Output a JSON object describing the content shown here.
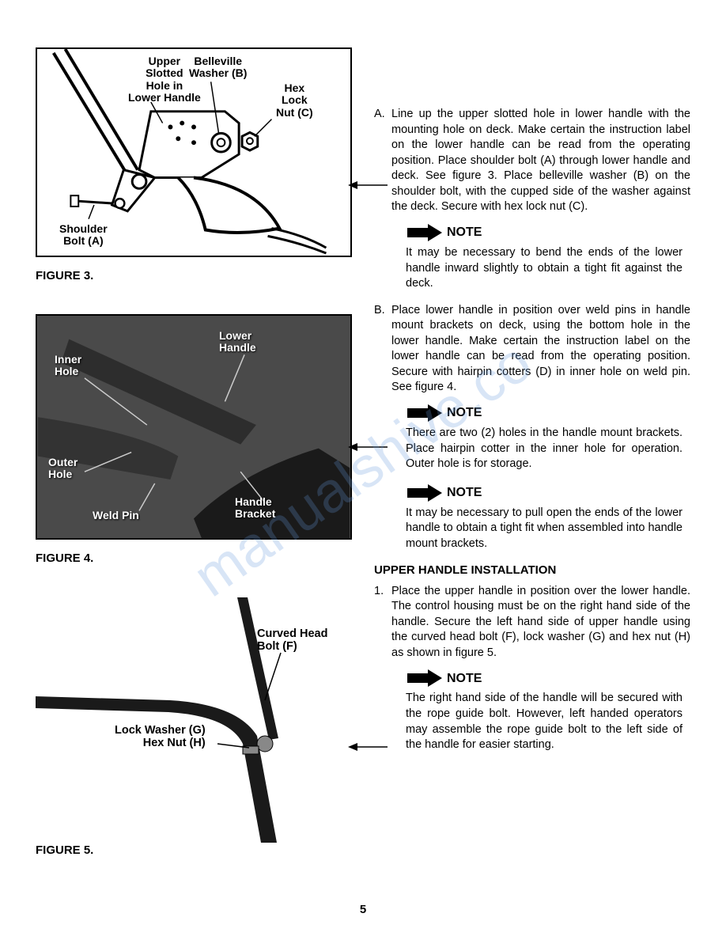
{
  "page_number": "5",
  "watermark": "manualshive.co",
  "figures": {
    "fig3": {
      "caption": "FIGURE 3.",
      "labels": {
        "upper_slotted": "Upper\nSlotted\nHole in\nLower Handle",
        "belleville": "Belleville\nWasher (B)",
        "hex_lock": "Hex\nLock\nNut (C)",
        "shoulder_bolt": "Shoulder\nBolt (A)"
      }
    },
    "fig4": {
      "caption": "FIGURE 4.",
      "labels": {
        "inner_hole": "Inner\nHole",
        "lower_handle": "Lower\nHandle",
        "outer_hole": "Outer\nHole",
        "weld_pin": "Weld Pin",
        "handle_bracket": "Handle\nBracket"
      }
    },
    "fig5": {
      "caption": "FIGURE 5.",
      "labels": {
        "curved_head": "Curved Head\nBolt (F)",
        "lock_washer": "Lock Washer (G)\nHex Nut (H)"
      }
    }
  },
  "instructions": {
    "item_a": {
      "letter": "A.",
      "text": "Line up the upper slotted hole in lower handle with the mounting hole on deck. Make certain the instruction label on the lower handle can be read from the operating position. Place shoulder bolt (A) through lower handle and deck. See figure 3. Place belleville washer (B) on the shoulder bolt, with the cupped side of the washer against the deck. Secure with hex lock nut (C)."
    },
    "note1": {
      "label": "NOTE",
      "text": "It may be necessary to bend the ends of the lower handle inward slightly to obtain a tight fit against the deck."
    },
    "item_b": {
      "letter": "B.",
      "text": "Place lower handle in position over weld pins in handle mount brackets on deck, using the bottom hole in the lower handle. Make certain the instruction label on the lower handle can be read from the operating position. Secure with hairpin cotters (D) in inner hole on weld pin. See figure 4."
    },
    "note2": {
      "label": "NOTE",
      "text": "There are two (2) holes in the handle mount brackets. Place hairpin cotter in the inner hole for operation. Outer hole is for storage."
    },
    "note3": {
      "label": "NOTE",
      "text": "It may be necessary to pull open the ends of the lower handle to obtain a tight fit when assembled into handle mount brackets."
    },
    "upper_heading": "UPPER HANDLE INSTALLATION",
    "item_1": {
      "letter": "1.",
      "text": "Place the upper handle in position over the lower handle. The control housing must be on the right hand side of the handle. Secure the left hand side of upper handle using the curved head bolt (F), lock washer (G) and hex nut (H) as shown in figure 5."
    },
    "note4": {
      "label": "NOTE",
      "text": "The right hand side of the handle will be secured with the rope guide bolt. However, left handed operators may assemble the rope guide bolt to the left side of the handle for easier starting."
    }
  }
}
